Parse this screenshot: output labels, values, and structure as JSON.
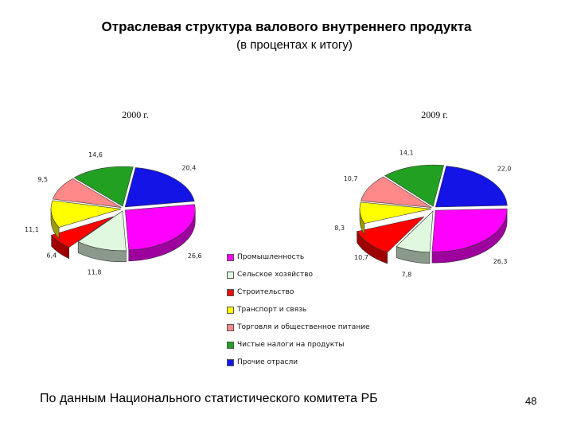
{
  "header": {
    "title": "Отраслевая структура валового внутреннего продукта",
    "subtitle": "(в процентах к итогу)"
  },
  "chart_data": [
    {
      "type": "pie",
      "title": "2000 г.",
      "categories": [
        "Промышленность",
        "Сельское хозяйство",
        "Строительство",
        "Транспорт и связь",
        "Торговля и общественное питание",
        "Чистые налоги на продукты",
        "Прочие отрасли"
      ],
      "values": [
        26.6,
        11.8,
        6.4,
        11.1,
        9.5,
        14.6,
        20.4
      ],
      "labels": [
        "26,6",
        "11,8",
        "6,4",
        "11,1",
        "9,5",
        "14,6",
        "20,4"
      ],
      "colors": [
        "#ff00ff",
        "#e0f7e0",
        "#ff0000",
        "#ffff00",
        "#ff8888",
        "#22a022",
        "#1414e6"
      ],
      "exploded": "Строительство",
      "legend": "bottom"
    },
    {
      "type": "pie",
      "title": "2009 г.",
      "categories": [
        "Промышленность",
        "Сельское хозяйство",
        "Строительство",
        "Транспорт и связь",
        "Торговля и общественное питание",
        "Чистые налоги на продукты",
        "Прочие отрасли"
      ],
      "values": [
        26.3,
        7.8,
        10.7,
        8.3,
        10.7,
        14.1,
        22.0
      ],
      "labels": [
        "26,3",
        "7,8",
        "10,7",
        "8,3",
        "10,7",
        "14,1",
        "22,0"
      ],
      "colors": [
        "#ff00ff",
        "#e0f7e0",
        "#ff0000",
        "#ffff00",
        "#ff8888",
        "#22a022",
        "#1414e6"
      ],
      "exploded": "Строительство",
      "legend": "bottom"
    }
  ],
  "legend": {
    "items": [
      {
        "label": "Промышленность",
        "color": "#ff00ff"
      },
      {
        "label": "Сельское хозяйство",
        "color": "#e0f7e0"
      },
      {
        "label": "Строительство",
        "color": "#ff0000"
      },
      {
        "label": "Транспорт и связь",
        "color": "#ffff00"
      },
      {
        "label": "Торговля и общественное питание",
        "color": "#ff8888"
      },
      {
        "label": "Чистые налоги на продукты",
        "color": "#22a022"
      },
      {
        "label": "Прочие отрасли",
        "color": "#1414e6"
      }
    ]
  },
  "footer": {
    "source": "По данным Национального статистического комитета РБ",
    "page_number": "48"
  }
}
